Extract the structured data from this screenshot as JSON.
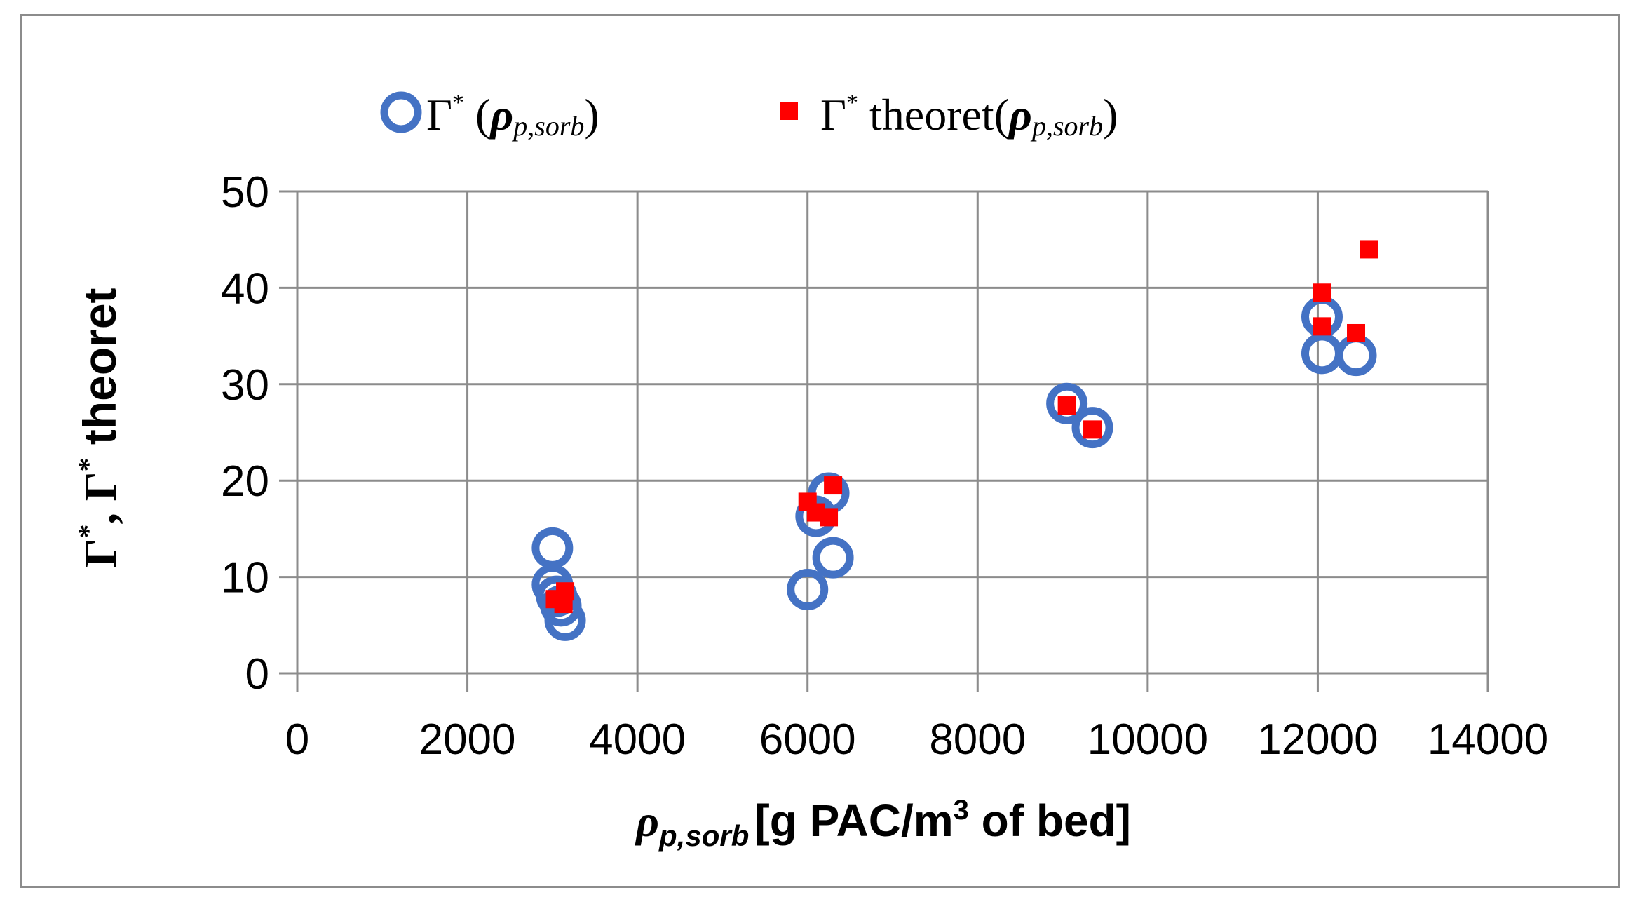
{
  "chart_data": {
    "type": "scatter",
    "xlabel": {
      "symbol": "ρ",
      "subscript": "p,sorb",
      "text": "[g PAC/m",
      "superscript": "3",
      "text_after": " of bed]"
    },
    "ylabel": {
      "part1": "Γ",
      "sup1": "*",
      "part2": ", Γ",
      "sup2": "*",
      "part3": " theoret"
    },
    "xlim": [
      0,
      14000
    ],
    "ylim": [
      0,
      50
    ],
    "xticks": [
      0,
      2000,
      4000,
      6000,
      8000,
      10000,
      12000,
      14000
    ],
    "yticks": [
      0,
      10,
      20,
      30,
      40,
      50
    ],
    "grid": true,
    "legend_position": "top",
    "series": [
      {
        "name": "Γ* (ρp,sorb)",
        "legend": {
          "base": "Γ",
          "sup": "*",
          "open": " (",
          "rho": "ρ",
          "sub": "p,sorb",
          "close": ")"
        },
        "marker": "circle-open",
        "color": "#4472C4",
        "x": [
          3000,
          3000,
          3050,
          3100,
          3150,
          6000,
          6100,
          6250,
          6300,
          9050,
          9350,
          12050,
          12050,
          12450
        ],
        "y": [
          13,
          9.2,
          8,
          7,
          5.5,
          8.7,
          16.3,
          18.7,
          12,
          28,
          25.5,
          37,
          33.2,
          33
        ]
      },
      {
        "name": "Γ* theoret(ρp,sorb)",
        "legend": {
          "base": "Γ",
          "sup": "*",
          "open": " theoret(",
          "rho": "ρ",
          "sub": "p,sorb",
          "close": ")"
        },
        "marker": "square-filled",
        "color": "#FF0000",
        "x": [
          3030,
          3130,
          3150,
          6000,
          6100,
          6250,
          6300,
          9050,
          9350,
          12050,
          12050,
          12450,
          12600
        ],
        "y": [
          7.7,
          7.2,
          8.5,
          17.8,
          16.7,
          16.2,
          19.5,
          27.8,
          25.3,
          39.5,
          36,
          35.3,
          44
        ]
      }
    ]
  }
}
